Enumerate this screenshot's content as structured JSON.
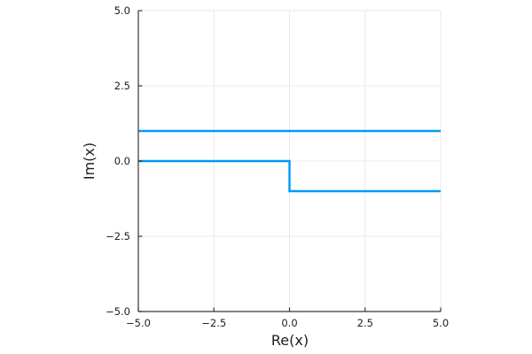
{
  "figure": {
    "background": "#ffffff"
  },
  "chart_data": {
    "type": "line",
    "title": "",
    "xlabel": "Re(x)",
    "ylabel": "Im(x)",
    "xlim": [
      -5,
      5
    ],
    "ylim": [
      -5,
      5
    ],
    "grid": true,
    "legend": "none",
    "xticks": {
      "values": [
        -5,
        -2.5,
        0,
        2.5,
        5
      ],
      "labels": [
        "−5.0",
        "−2.5",
        "0.0",
        "2.5",
        "5.0"
      ]
    },
    "yticks": {
      "values": [
        -5,
        -2.5,
        0,
        2.5,
        5
      ],
      "labels": [
        "−5.0",
        "−2.5",
        "0.0",
        "2.5",
        "5.0"
      ]
    },
    "series": [
      {
        "name": "constant-line-im-equals-1",
        "color": "#009af9",
        "width": 2.4,
        "points": [
          [
            -5,
            1
          ],
          [
            5,
            1
          ]
        ]
      },
      {
        "name": "step-line-im-0-to-minus-1",
        "color": "#009af9",
        "width": 2.4,
        "points": [
          [
            -5,
            0
          ],
          [
            0,
            0
          ],
          [
            0,
            -1
          ],
          [
            5,
            -1
          ]
        ]
      }
    ],
    "colors": {
      "grid": "#e9e9e9",
      "frame": "#e9e9e9",
      "spine": "#36363a",
      "tick_label": "#1e1e20",
      "series_blue": "#009af9"
    }
  }
}
